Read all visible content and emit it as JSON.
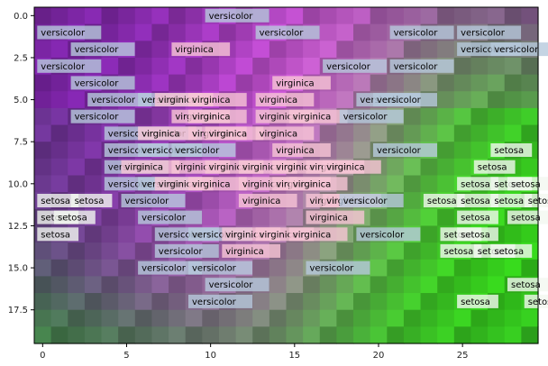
{
  "chart_data": {
    "type": "heatmap",
    "title": "",
    "xlabel": "",
    "ylabel": "",
    "xlim": [
      -0.5,
      29.5
    ],
    "ylim": [
      19.5,
      -0.5
    ],
    "grid": false,
    "grid_shape": [
      20,
      30
    ],
    "color_regions": [
      {
        "name": "versicolor",
        "color": "#7a1fb0",
        "center": [
          5,
          6
        ]
      },
      {
        "name": "virginica",
        "color": "#ff66ff",
        "center": [
          14,
          8
        ]
      },
      {
        "name": "setosa",
        "color": "#33ee11",
        "center": [
          24,
          12
        ]
      }
    ],
    "x_ticks": [
      0,
      5,
      10,
      15,
      20,
      25
    ],
    "x_tick_labels": [
      "0",
      "5",
      "10",
      "15",
      "20",
      "25"
    ],
    "y_ticks": [
      0.0,
      2.5,
      5.0,
      7.5,
      10.0,
      12.5,
      15.0,
      17.5
    ],
    "y_tick_labels": [
      "0.0",
      "2.5",
      "5.0",
      "7.5",
      "10.0",
      "12.5",
      "15.0",
      "17.5"
    ],
    "label_colors": {
      "versicolor": "#b7c9dc",
      "virginica": "#f7c6d6",
      "setosa": "#f3f7f0"
    },
    "annotations": [
      {
        "text": "versicolor",
        "x": 10,
        "y": 0
      },
      {
        "text": "versicolor",
        "x": 0,
        "y": 1
      },
      {
        "text": "versicolor",
        "x": 13,
        "y": 1
      },
      {
        "text": "versicolor",
        "x": 21,
        "y": 1
      },
      {
        "text": "versicolor",
        "x": 25,
        "y": 1
      },
      {
        "text": "versicolor",
        "x": 2,
        "y": 2
      },
      {
        "text": "virginica",
        "x": 8,
        "y": 2
      },
      {
        "text": "versicolor",
        "x": 25,
        "y": 2
      },
      {
        "text": "versicolor",
        "x": 27,
        "y": 2
      },
      {
        "text": "versicolor",
        "x": 0,
        "y": 3
      },
      {
        "text": "versicolor",
        "x": 17,
        "y": 3
      },
      {
        "text": "versicolor",
        "x": 21,
        "y": 3
      },
      {
        "text": "versicolor",
        "x": 2,
        "y": 4
      },
      {
        "text": "virginica",
        "x": 14,
        "y": 4
      },
      {
        "text": "versicolor",
        "x": 3,
        "y": 5
      },
      {
        "text": "versicolor",
        "x": 6,
        "y": 5
      },
      {
        "text": "virginica",
        "x": 7,
        "y": 5
      },
      {
        "text": "virginica",
        "x": 9,
        "y": 5
      },
      {
        "text": "virginica",
        "x": 13,
        "y": 5
      },
      {
        "text": "versicolor",
        "x": 19,
        "y": 5
      },
      {
        "text": "versicolor",
        "x": 20,
        "y": 5
      },
      {
        "text": "versicolor",
        "x": 2,
        "y": 6
      },
      {
        "text": "virginica",
        "x": 8,
        "y": 6
      },
      {
        "text": "virginica",
        "x": 9,
        "y": 6
      },
      {
        "text": "virginica",
        "x": 13,
        "y": 6
      },
      {
        "text": "virginica",
        "x": 15,
        "y": 6
      },
      {
        "text": "versicolor",
        "x": 18,
        "y": 6
      },
      {
        "text": "versicolor",
        "x": 4,
        "y": 7
      },
      {
        "text": "versicolor",
        "x": 6,
        "y": 7
      },
      {
        "text": "virginica",
        "x": 6,
        "y": 7
      },
      {
        "text": "virginica",
        "x": 9,
        "y": 7
      },
      {
        "text": "virginica",
        "x": 10,
        "y": 7
      },
      {
        "text": "virginica",
        "x": 13,
        "y": 7
      },
      {
        "text": "versicolor",
        "x": 4,
        "y": 8
      },
      {
        "text": "versicolor",
        "x": 6,
        "y": 8
      },
      {
        "text": "versicolor",
        "x": 8,
        "y": 8
      },
      {
        "text": "virginica",
        "x": 14,
        "y": 8
      },
      {
        "text": "versicolor",
        "x": 20,
        "y": 8
      },
      {
        "text": "setosa",
        "x": 27,
        "y": 8
      },
      {
        "text": "versicolor",
        "x": 4,
        "y": 9
      },
      {
        "text": "virginica",
        "x": 5,
        "y": 9
      },
      {
        "text": "virginica",
        "x": 8,
        "y": 9
      },
      {
        "text": "virginica",
        "x": 10,
        "y": 9
      },
      {
        "text": "virginica",
        "x": 12,
        "y": 9
      },
      {
        "text": "virginica",
        "x": 14,
        "y": 9
      },
      {
        "text": "virginica",
        "x": 16,
        "y": 9
      },
      {
        "text": "virginica",
        "x": 17,
        "y": 9
      },
      {
        "text": "setosa",
        "x": 26,
        "y": 9
      },
      {
        "text": "versicolor",
        "x": 4,
        "y": 10
      },
      {
        "text": "versicolor",
        "x": 6,
        "y": 10
      },
      {
        "text": "virginica",
        "x": 7,
        "y": 10
      },
      {
        "text": "virginica",
        "x": 9,
        "y": 10
      },
      {
        "text": "virginica",
        "x": 12,
        "y": 10
      },
      {
        "text": "virginica",
        "x": 14,
        "y": 10
      },
      {
        "text": "virginica",
        "x": 15,
        "y": 10
      },
      {
        "text": "setosa",
        "x": 25,
        "y": 10
      },
      {
        "text": "setosa",
        "x": 27,
        "y": 10
      },
      {
        "text": "setosa",
        "x": 28,
        "y": 10
      },
      {
        "text": "setosa",
        "x": 0,
        "y": 11
      },
      {
        "text": "setosa",
        "x": 2,
        "y": 11
      },
      {
        "text": "versicolor",
        "x": 5,
        "y": 11
      },
      {
        "text": "virginica",
        "x": 12,
        "y": 11
      },
      {
        "text": "virginica",
        "x": 16,
        "y": 11
      },
      {
        "text": "virginica",
        "x": 17,
        "y": 11
      },
      {
        "text": "versicolor",
        "x": 18,
        "y": 11
      },
      {
        "text": "setosa",
        "x": 23,
        "y": 11
      },
      {
        "text": "setosa",
        "x": 25,
        "y": 11
      },
      {
        "text": "setosa",
        "x": 27,
        "y": 11
      },
      {
        "text": "setosa",
        "x": 29,
        "y": 11
      },
      {
        "text": "setosa",
        "x": 0,
        "y": 12
      },
      {
        "text": "setosa",
        "x": 1,
        "y": 12
      },
      {
        "text": "versicolor",
        "x": 6,
        "y": 12
      },
      {
        "text": "virginica",
        "x": 16,
        "y": 12
      },
      {
        "text": "setosa",
        "x": 25,
        "y": 12
      },
      {
        "text": "setosa",
        "x": 28,
        "y": 12
      },
      {
        "text": "setosa",
        "x": 0,
        "y": 13
      },
      {
        "text": "versicolor",
        "x": 7,
        "y": 13
      },
      {
        "text": "versicolor",
        "x": 9,
        "y": 13
      },
      {
        "text": "virginica",
        "x": 11,
        "y": 13
      },
      {
        "text": "virginica",
        "x": 13,
        "y": 13
      },
      {
        "text": "virginica",
        "x": 15,
        "y": 13
      },
      {
        "text": "versicolor",
        "x": 19,
        "y": 13
      },
      {
        "text": "setosa",
        "x": 24,
        "y": 13
      },
      {
        "text": "setosa",
        "x": 25,
        "y": 13
      },
      {
        "text": "versicolor",
        "x": 7,
        "y": 14
      },
      {
        "text": "virginica",
        "x": 11,
        "y": 14
      },
      {
        "text": "setosa",
        "x": 24,
        "y": 14
      },
      {
        "text": "setosa",
        "x": 26,
        "y": 14
      },
      {
        "text": "setosa",
        "x": 27,
        "y": 14
      },
      {
        "text": "versicolor",
        "x": 6,
        "y": 15
      },
      {
        "text": "versicolor",
        "x": 9,
        "y": 15
      },
      {
        "text": "versicolor",
        "x": 16,
        "y": 15
      },
      {
        "text": "versicolor",
        "x": 10,
        "y": 16
      },
      {
        "text": "setosa",
        "x": 28,
        "y": 16
      },
      {
        "text": "versicolor",
        "x": 9,
        "y": 17
      },
      {
        "text": "setosa",
        "x": 25,
        "y": 17
      },
      {
        "text": "setosa",
        "x": 29,
        "y": 17
      }
    ]
  }
}
